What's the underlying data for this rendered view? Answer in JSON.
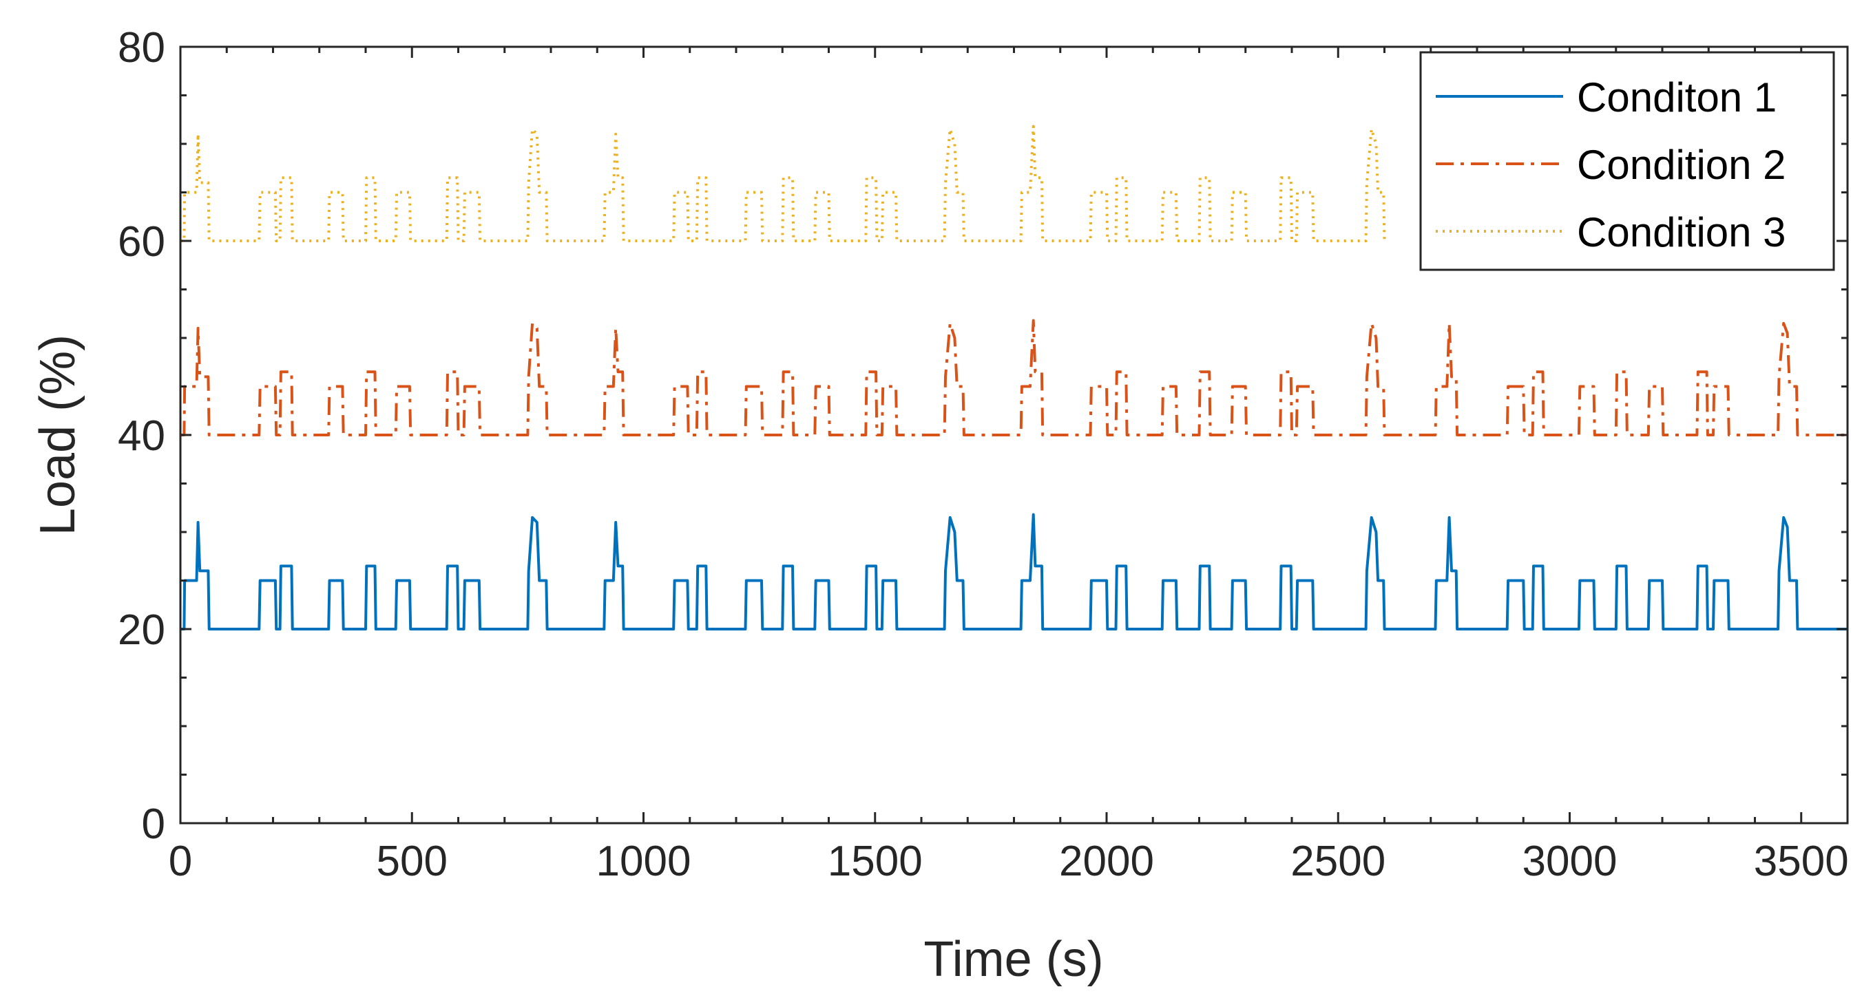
{
  "chart_data": {
    "type": "line",
    "title": "",
    "xlabel": "Time (s)",
    "ylabel": "Load (%)",
    "xlim": [
      0,
      3600
    ],
    "ylim": [
      0,
      80
    ],
    "xticks": [
      0,
      500,
      1000,
      1500,
      2000,
      2500,
      3000,
      3500
    ],
    "xtick_labels": [
      "0",
      "500",
      "1000",
      "1500",
      "2000",
      "2500",
      "3000",
      "3500"
    ],
    "yticks": [
      0,
      20,
      40,
      60,
      80
    ],
    "ytick_labels": [
      "0",
      "20",
      "40",
      "60",
      "80"
    ],
    "grid": false,
    "legend_position": "top-right",
    "base_pattern": [
      [
        0,
        20
      ],
      [
        8,
        20
      ],
      [
        9,
        25
      ],
      [
        35,
        25
      ],
      [
        38,
        31
      ],
      [
        42,
        26
      ],
      [
        60,
        26
      ],
      [
        62,
        20
      ],
      [
        170,
        20
      ],
      [
        172,
        25
      ],
      [
        205,
        25
      ],
      [
        207,
        20
      ],
      [
        215,
        20
      ],
      [
        217,
        26.5
      ],
      [
        240,
        26.5
      ],
      [
        242,
        20
      ],
      [
        320,
        20
      ],
      [
        322,
        25
      ],
      [
        350,
        25
      ],
      [
        352,
        20
      ],
      [
        400,
        20
      ],
      [
        402,
        26.5
      ],
      [
        420,
        26.5
      ],
      [
        422,
        20
      ],
      [
        465,
        20
      ],
      [
        467,
        25
      ],
      [
        495,
        25
      ],
      [
        497,
        20
      ],
      [
        575,
        20
      ],
      [
        577,
        26.5
      ],
      [
        598,
        26.5
      ],
      [
        600,
        20
      ],
      [
        612,
        20
      ],
      [
        614,
        25
      ],
      [
        645,
        25
      ],
      [
        647,
        20
      ],
      [
        750,
        20
      ],
      [
        752,
        26
      ],
      [
        760,
        31.5
      ],
      [
        770,
        31
      ],
      [
        775,
        25
      ],
      [
        790,
        25
      ],
      [
        792,
        20
      ],
      [
        915,
        20
      ],
      [
        917,
        25
      ],
      [
        935,
        25
      ],
      [
        940,
        31
      ],
      [
        945,
        26.5
      ],
      [
        955,
        26.5
      ],
      [
        957,
        20
      ],
      [
        1065,
        20
      ],
      [
        1067,
        25
      ],
      [
        1095,
        25
      ],
      [
        1097,
        20
      ],
      [
        1115,
        20
      ],
      [
        1117,
        26.5
      ],
      [
        1135,
        26.5
      ],
      [
        1137,
        20
      ],
      [
        1220,
        20
      ],
      [
        1222,
        25
      ],
      [
        1255,
        25
      ],
      [
        1257,
        20
      ],
      [
        1300,
        20
      ],
      [
        1302,
        26.5
      ],
      [
        1322,
        26.5
      ],
      [
        1324,
        20
      ],
      [
        1370,
        20
      ],
      [
        1372,
        25
      ],
      [
        1400,
        25
      ],
      [
        1402,
        20
      ],
      [
        1480,
        20
      ],
      [
        1482,
        26.5
      ],
      [
        1502,
        26.5
      ],
      [
        1504,
        20
      ],
      [
        1515,
        20
      ],
      [
        1517,
        25
      ],
      [
        1545,
        25
      ],
      [
        1547,
        20
      ],
      [
        1650,
        20
      ],
      [
        1652,
        26
      ],
      [
        1662,
        31.5
      ],
      [
        1672,
        30
      ],
      [
        1677,
        25
      ],
      [
        1690,
        25
      ],
      [
        1692,
        20
      ],
      [
        1815,
        20
      ],
      [
        1817,
        25
      ],
      [
        1835,
        25
      ],
      [
        1842,
        31.8
      ],
      [
        1846,
        26.5
      ],
      [
        1860,
        26.5
      ],
      [
        1862,
        20
      ],
      [
        1965,
        20
      ],
      [
        1967,
        25
      ],
      [
        2000,
        25
      ],
      [
        2002,
        20
      ],
      [
        2020,
        20
      ],
      [
        2022,
        26.5
      ],
      [
        2042,
        26.5
      ],
      [
        2044,
        20
      ],
      [
        2120,
        20
      ],
      [
        2122,
        25
      ],
      [
        2150,
        25
      ],
      [
        2152,
        20
      ],
      [
        2200,
        20
      ],
      [
        2202,
        26.5
      ],
      [
        2222,
        26.5
      ],
      [
        2224,
        20
      ],
      [
        2270,
        20
      ],
      [
        2272,
        25
      ],
      [
        2300,
        25
      ],
      [
        2302,
        20
      ],
      [
        2375,
        20
      ],
      [
        2377,
        26.5
      ],
      [
        2398,
        26.5
      ],
      [
        2400,
        20
      ],
      [
        2410,
        20
      ],
      [
        2412,
        25
      ],
      [
        2445,
        25
      ],
      [
        2447,
        20
      ],
      [
        2560,
        20
      ],
      [
        2562,
        26
      ],
      [
        2572,
        31.5
      ],
      [
        2582,
        30
      ],
      [
        2586,
        25
      ],
      [
        2598,
        25
      ],
      [
        2600,
        20
      ],
      [
        2710,
        20
      ],
      [
        2712,
        25
      ],
      [
        2735,
        25
      ],
      [
        2740,
        31.5
      ],
      [
        2745,
        26
      ],
      [
        2755,
        26
      ],
      [
        2757,
        20
      ],
      [
        2865,
        20
      ],
      [
        2867,
        25
      ],
      [
        2900,
        25
      ],
      [
        2902,
        20
      ],
      [
        2920,
        20
      ],
      [
        2922,
        26.5
      ],
      [
        2942,
        26.5
      ],
      [
        2944,
        20
      ],
      [
        3020,
        20
      ],
      [
        3022,
        25
      ],
      [
        3052,
        25
      ],
      [
        3054,
        20
      ],
      [
        3100,
        20
      ],
      [
        3102,
        26.5
      ],
      [
        3122,
        26.5
      ],
      [
        3124,
        20
      ],
      [
        3170,
        20
      ],
      [
        3172,
        25
      ],
      [
        3200,
        25
      ],
      [
        3202,
        20
      ],
      [
        3275,
        20
      ],
      [
        3277,
        26.5
      ],
      [
        3296,
        26.5
      ],
      [
        3298,
        20
      ],
      [
        3310,
        20
      ],
      [
        3312,
        25
      ],
      [
        3342,
        25
      ],
      [
        3344,
        20
      ],
      [
        3450,
        20
      ],
      [
        3452,
        26
      ],
      [
        3462,
        31.5
      ],
      [
        3470,
        30.5
      ],
      [
        3475,
        25
      ],
      [
        3490,
        25
      ],
      [
        3492,
        20
      ],
      [
        3600,
        20
      ]
    ],
    "series": [
      {
        "name": "Conditon 1",
        "color": "#0072BD",
        "style": "solid",
        "offset": 0,
        "xmax": 3600
      },
      {
        "name": "Condition 2",
        "color": "#D95319",
        "style": "dashdot",
        "offset": 20,
        "xmax": 3600
      },
      {
        "name": "Condition 3",
        "color": "#EDB120",
        "style": "dotted",
        "offset": 40,
        "xmax": 2700
      }
    ]
  }
}
